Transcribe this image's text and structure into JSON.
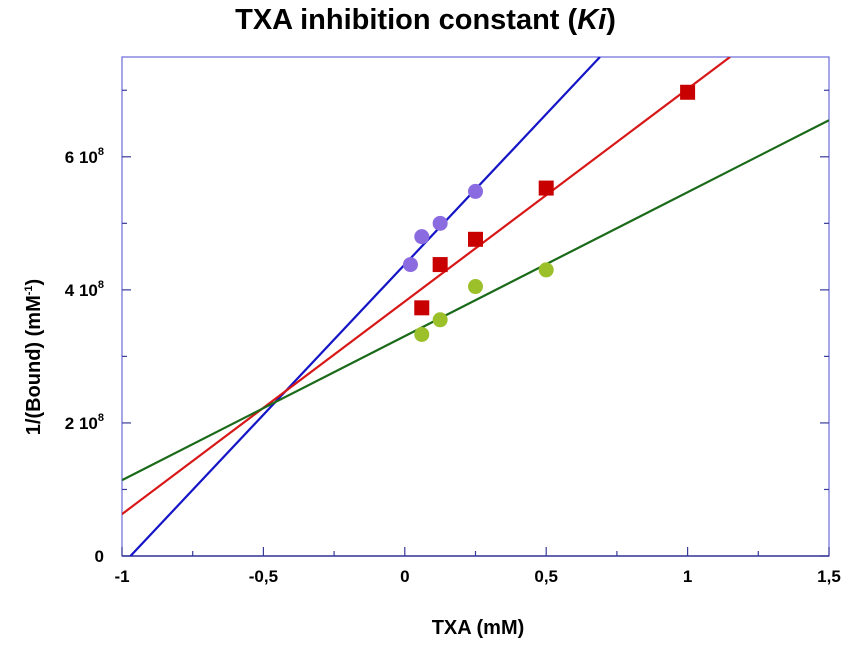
{
  "chart_data": {
    "type": "scatter",
    "title": "TXA inhibition constant (",
    "title_italic": "Ki",
    "title_end": ")",
    "xlabel": "TXA (mM)",
    "ylabel_main": "1/(Bound) (mM",
    "ylabel_sup": "-1",
    "ylabel_end": ")",
    "xlim": [
      -1,
      1.5
    ],
    "ylim": [
      0,
      750000000
    ],
    "x_ticks": [
      {
        "value": -1,
        "label": "-1"
      },
      {
        "value": -0.5,
        "label": "-0,5"
      },
      {
        "value": 0,
        "label": "0"
      },
      {
        "value": 0.5,
        "label": "0,5"
      },
      {
        "value": 1,
        "label": "1"
      },
      {
        "value": 1.5,
        "label": "1,5"
      }
    ],
    "y_ticks": [
      {
        "value": 0,
        "base": "0",
        "exp": ""
      },
      {
        "value": 200000000,
        "base": "2 10",
        "exp": "8"
      },
      {
        "value": 400000000,
        "base": "4 10",
        "exp": "8"
      },
      {
        "value": 600000000,
        "base": "6 10",
        "exp": "8"
      }
    ],
    "series": [
      {
        "name": "series-blue",
        "marker": "circle",
        "marker_color": "#8b6be0",
        "line_color": "#1515c8",
        "points": [
          [
            0.02,
            438000000
          ],
          [
            0.06,
            480000000
          ],
          [
            0.125,
            500000000
          ],
          [
            0.25,
            548000000
          ]
        ],
        "line": [
          [
            -0.97,
            0
          ],
          [
            0.69,
            750000000
          ]
        ]
      },
      {
        "name": "series-red",
        "marker": "square",
        "marker_color": "#c80000",
        "line_color": "#d81818",
        "points": [
          [
            0.06,
            373000000
          ],
          [
            0.125,
            438000000
          ],
          [
            0.25,
            476000000
          ],
          [
            0.5,
            553000000
          ],
          [
            1.0,
            697000000
          ]
        ],
        "line": [
          [
            -1,
            63000000
          ],
          [
            1.15,
            750000000
          ]
        ]
      },
      {
        "name": "series-green",
        "marker": "circle",
        "marker_color": "#9bc02a",
        "line_color": "#1a6a1a",
        "points": [
          [
            0.06,
            333000000
          ],
          [
            0.125,
            355000000
          ],
          [
            0.25,
            405000000
          ],
          [
            0.5,
            430000000
          ]
        ],
        "line": [
          [
            -1,
            114000000
          ],
          [
            1.5,
            655000000
          ]
        ]
      }
    ]
  }
}
